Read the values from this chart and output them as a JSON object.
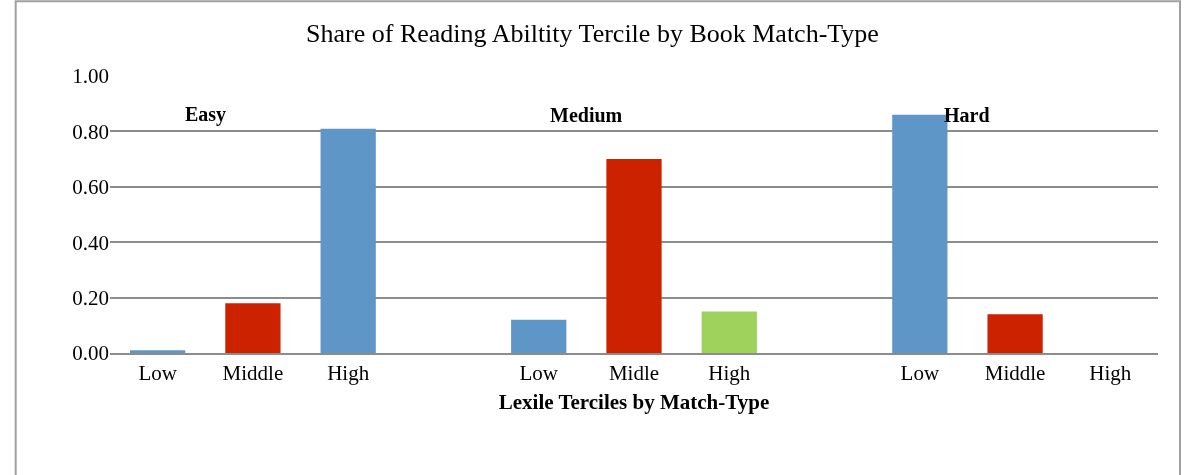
{
  "chart_data": {
    "type": "bar",
    "title": "Share of Reading Abiltity Tercile by Book Match-Type",
    "xlabel": "Lexile Terciles by Match-Type",
    "categories": [
      "Low",
      "Middle",
      "High",
      null,
      "Low",
      "Midle",
      "High",
      null,
      "Low",
      "Middle",
      "High"
    ],
    "values": [
      0.01,
      0.18,
      0.81,
      null,
      0.12,
      0.7,
      0.15,
      null,
      0.86,
      0.14,
      0
    ],
    "colors": [
      "#5f96c8",
      "#cc2200",
      "#5f96c8",
      null,
      "#5f96c8",
      "#cc2200",
      "#9fd25c",
      null,
      "#5f96c8",
      "#cc2200",
      "#9fd25c"
    ],
    "annotations": [
      "Easy",
      "Medium",
      "Hard"
    ],
    "ylim": [
      0,
      1
    ],
    "yticks": [
      {
        "value": 0,
        "label": "0.00"
      },
      {
        "value": 0.2,
        "label": "0.20"
      },
      {
        "value": 0.4,
        "label": "0.40"
      },
      {
        "value": 0.6,
        "label": "0.60"
      },
      {
        "value": 0.8,
        "label": "0.80"
      },
      {
        "value": 1,
        "label": "1.00"
      }
    ],
    "grid": "y",
    "legend": false
  }
}
